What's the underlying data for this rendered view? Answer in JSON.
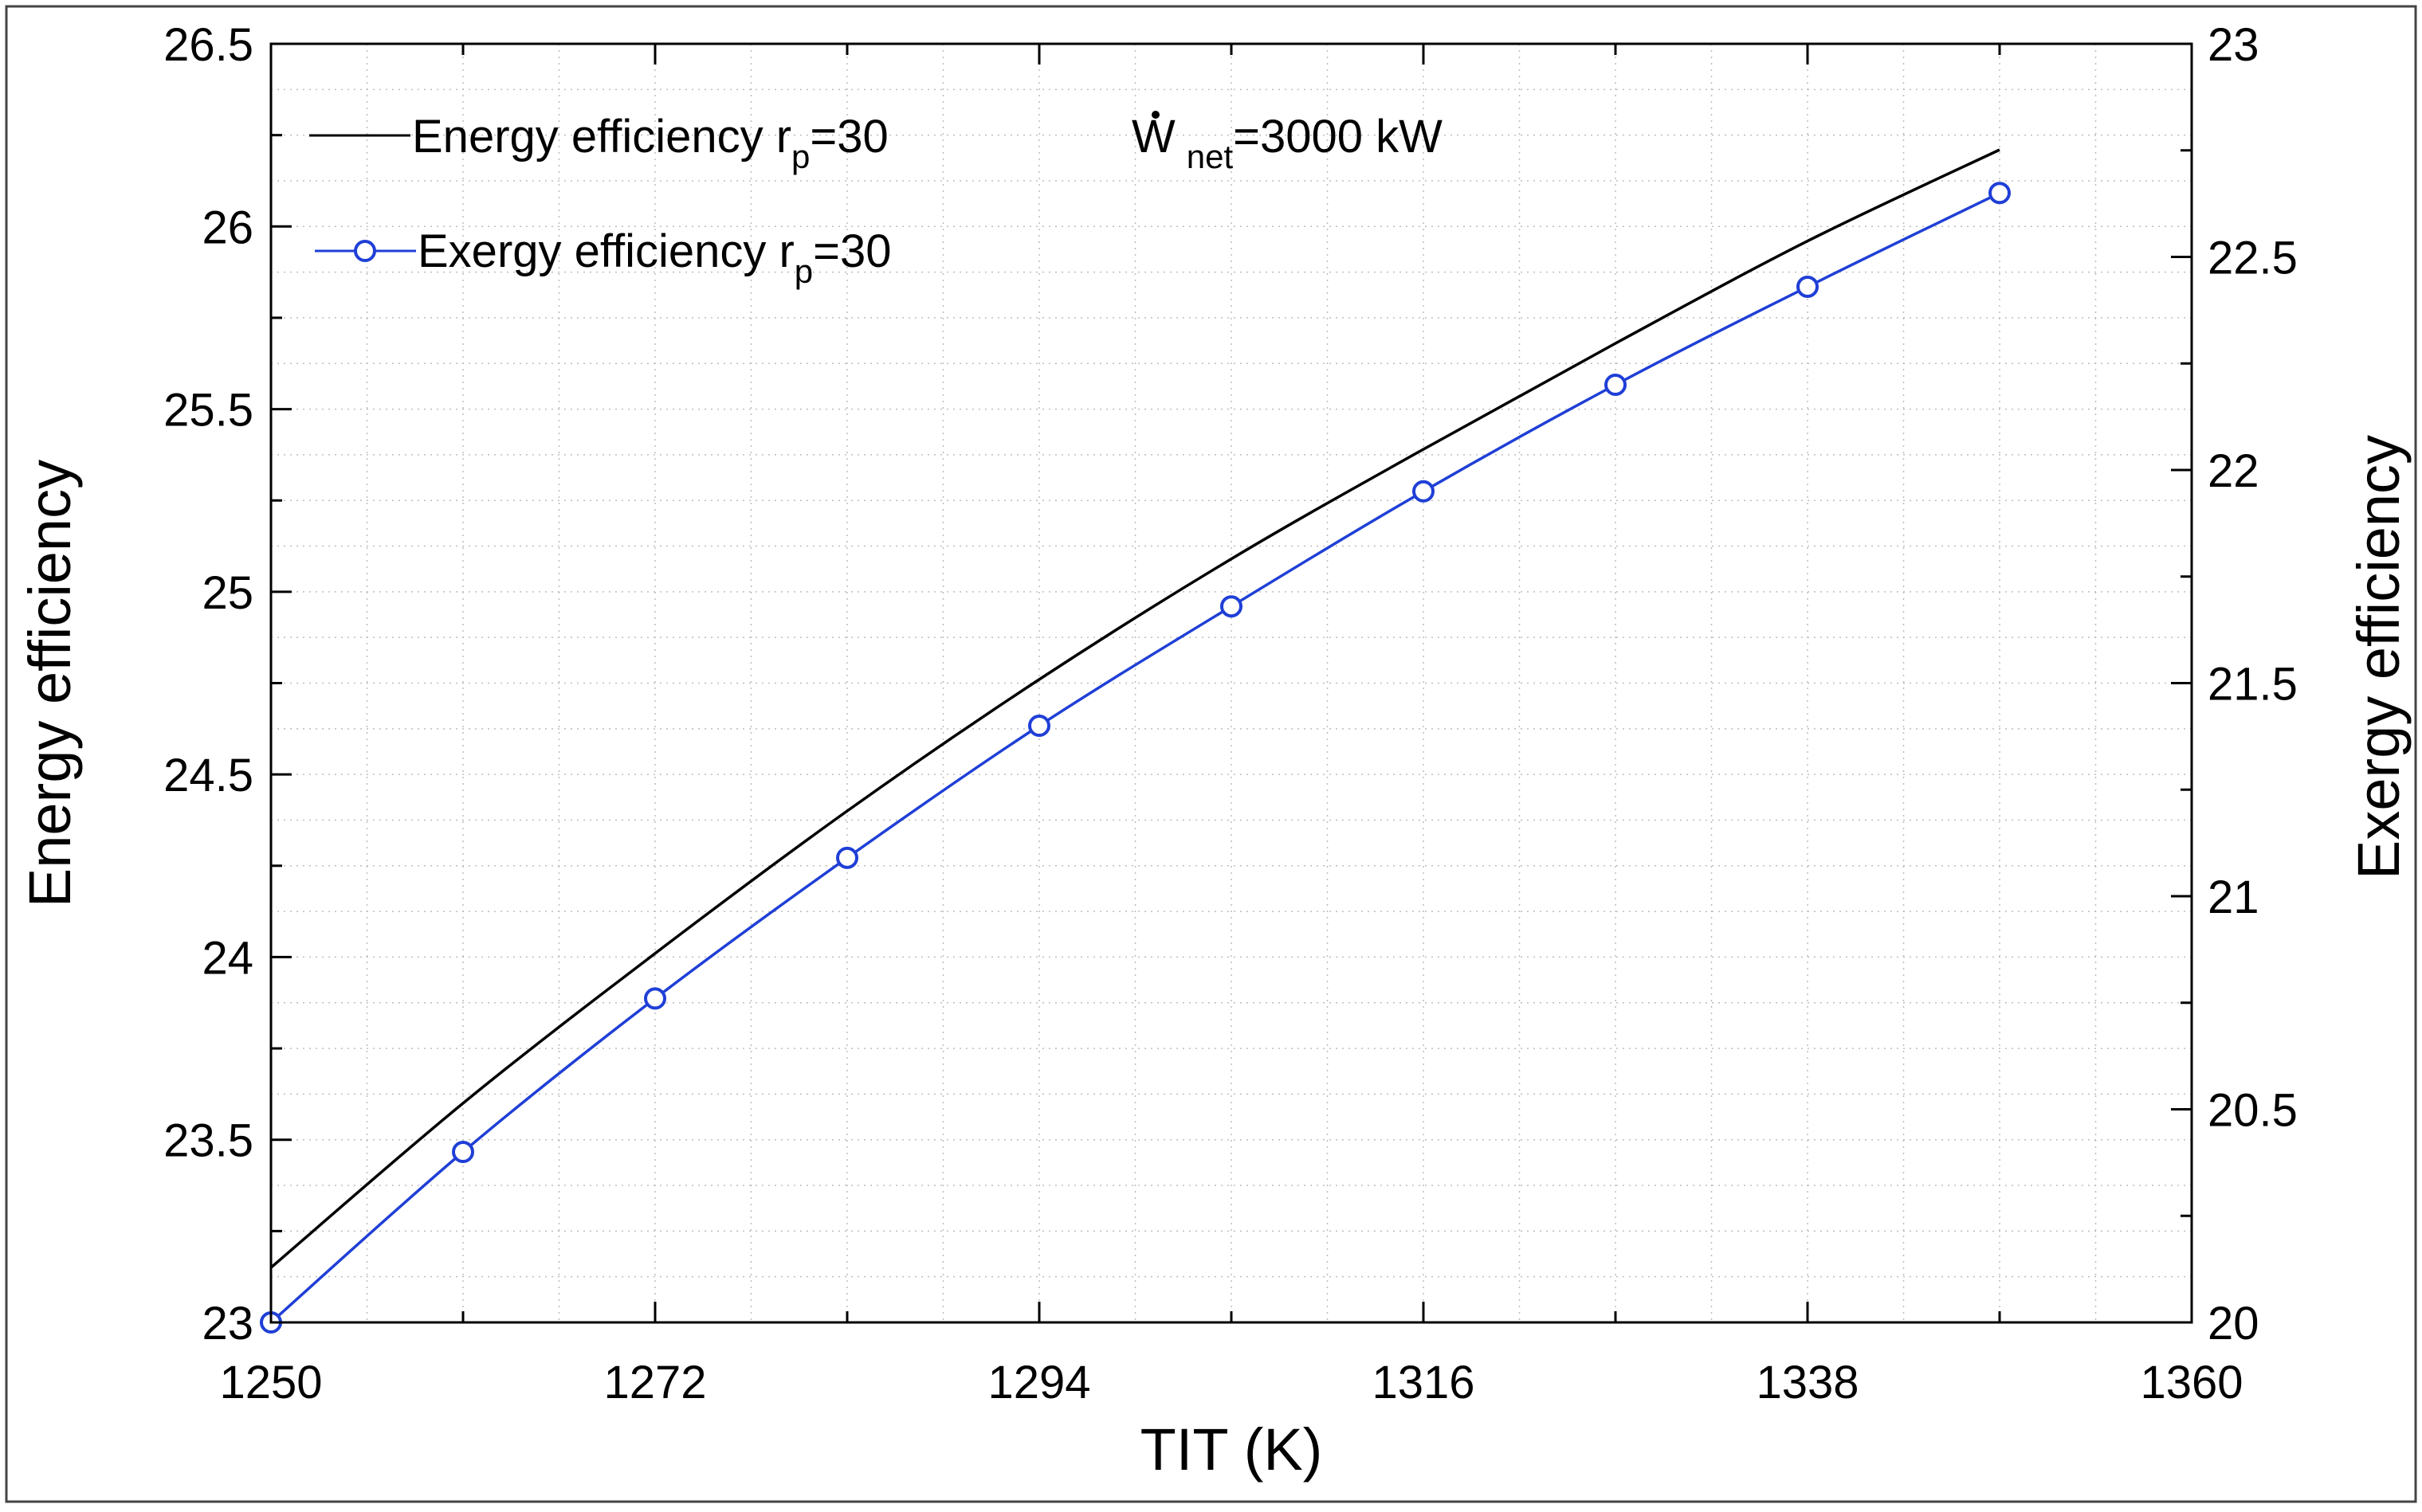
{
  "chart_data": {
    "type": "line",
    "xlabel": "TIT (K)",
    "ylabel_left": "Energy efficiency",
    "ylabel_right": "Exergy efficiency",
    "xlim": [
      1250,
      1360
    ],
    "ylim_left": [
      23,
      26.5
    ],
    "ylim_right": [
      20,
      23
    ],
    "x_ticks": [
      1250,
      1272,
      1294,
      1316,
      1338,
      1360
    ],
    "x_tick_labels": [
      "1250",
      "1272",
      "1294",
      "1316",
      "1338",
      "1360"
    ],
    "y_left_ticks": [
      23,
      23.5,
      24,
      24.5,
      25,
      25.5,
      26,
      26.5
    ],
    "y_left_tick_labels": [
      "23",
      "23.5",
      "24",
      "24.5",
      "25",
      "25.5",
      "26",
      "26.5"
    ],
    "y_right_ticks": [
      20,
      20.5,
      21,
      21.5,
      22,
      22.5,
      23
    ],
    "y_right_tick_labels": [
      "20",
      "20.5",
      "21",
      "21.5",
      "22",
      "22.5",
      "23"
    ],
    "grid": true,
    "legend_position": "top-left",
    "annotation": {
      "symbol": "W",
      "subscript": "net",
      "text": "=3000 kW"
    },
    "series": [
      {
        "name": "Energy efficiency r",
        "subscript": "p",
        "suffix": "=30",
        "axis": "left",
        "color": "#000000",
        "marker": "none",
        "x": [
          1250,
          1261,
          1272,
          1283,
          1294,
          1305,
          1316,
          1327,
          1338,
          1349
        ],
        "y": [
          23.15,
          23.6,
          24.01,
          24.4,
          24.76,
          25.09,
          25.39,
          25.68,
          25.96,
          26.21
        ]
      },
      {
        "name": "Exergy efficiency r",
        "subscript": "p",
        "suffix": "=30",
        "axis": "right",
        "color": "#1f3fd6",
        "marker": "circle",
        "x": [
          1250,
          1261,
          1272,
          1283,
          1294,
          1305,
          1316,
          1327,
          1338,
          1349
        ],
        "y": [
          20.0,
          20.4,
          20.76,
          21.09,
          21.4,
          21.68,
          21.95,
          22.2,
          22.43,
          22.65
        ]
      }
    ]
  }
}
